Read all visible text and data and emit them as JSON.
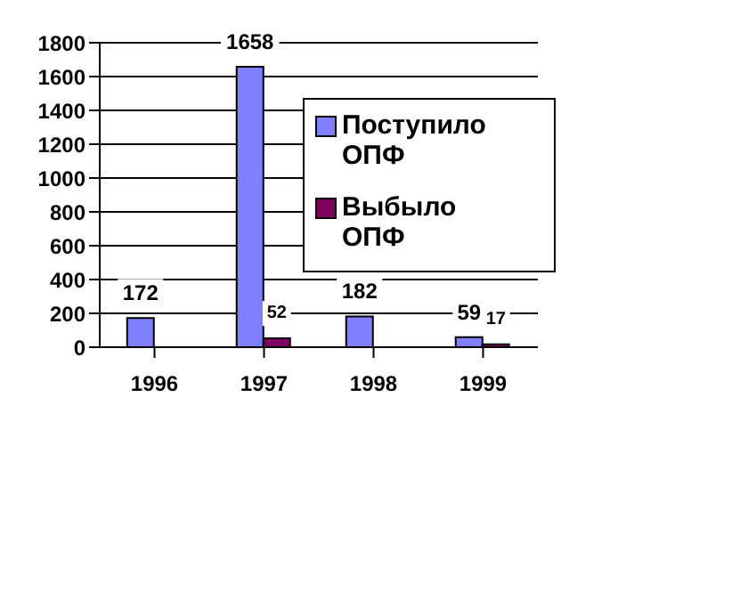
{
  "chart_data": {
    "type": "bar",
    "categories": [
      "1996",
      "1997",
      "1998",
      "1999"
    ],
    "series": [
      {
        "name": "Поступило ОПФ",
        "color": "#8080ff",
        "values": [
          172,
          1658,
          182,
          59
        ]
      },
      {
        "name": "Выбыло ОПФ",
        "color": "#800060",
        "values": [
          null,
          52,
          null,
          17
        ]
      }
    ],
    "ylim": [
      0,
      1800
    ],
    "yticks": [
      0,
      200,
      400,
      600,
      800,
      1000,
      1200,
      1400,
      1600,
      1800
    ],
    "grid": "y",
    "legend": "top right",
    "data_labels": true
  }
}
